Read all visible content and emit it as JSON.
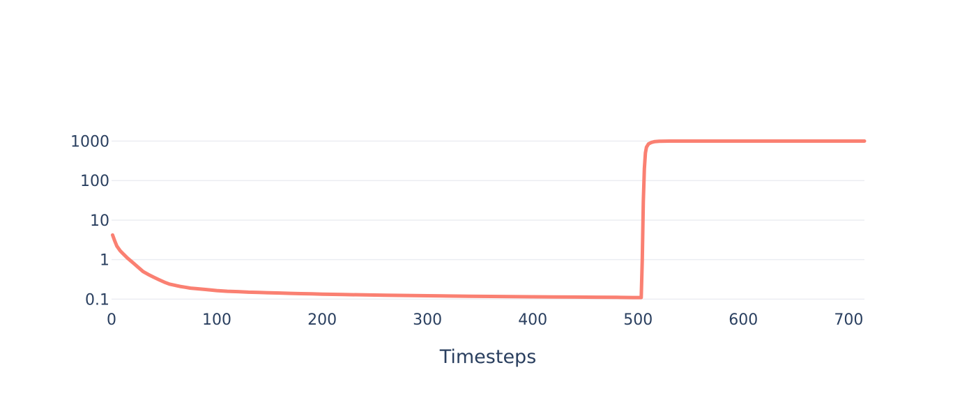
{
  "chart_data": {
    "type": "line",
    "title": "",
    "xlabel": "Timesteps",
    "ylabel": "",
    "xlim": [
      0,
      715
    ],
    "ylim": [
      0.06,
      1300
    ],
    "yscale": "log",
    "grid": {
      "x": false,
      "y": true
    },
    "legend": "none",
    "x_ticks": [
      {
        "value": 0,
        "label": "0"
      },
      {
        "value": 100,
        "label": "100"
      },
      {
        "value": 200,
        "label": "200"
      },
      {
        "value": 300,
        "label": "300"
      },
      {
        "value": 400,
        "label": "400"
      },
      {
        "value": 500,
        "label": "500"
      },
      {
        "value": 600,
        "label": "600"
      },
      {
        "value": 700,
        "label": "700"
      }
    ],
    "y_ticks": [
      {
        "value": 0.1,
        "label": "0.1"
      },
      {
        "value": 1,
        "label": "1"
      },
      {
        "value": 10,
        "label": "10"
      },
      {
        "value": 100,
        "label": "100"
      },
      {
        "value": 1000,
        "label": "1000"
      }
    ],
    "series": [
      {
        "color": "#fa8072",
        "x": [
          1,
          3,
          5,
          8,
          10,
          15,
          20,
          25,
          30,
          35,
          40,
          45,
          50,
          55,
          60,
          65,
          70,
          75,
          80,
          90,
          100,
          110,
          120,
          130,
          140,
          150,
          160,
          170,
          180,
          190,
          200,
          220,
          240,
          260,
          280,
          300,
          320,
          340,
          360,
          380,
          400,
          420,
          440,
          460,
          480,
          495,
          500,
          503,
          504,
          505,
          506,
          507,
          508,
          510,
          513,
          516,
          520,
          530,
          550,
          600,
          650,
          715
        ],
        "y": [
          4.2,
          3.0,
          2.2,
          1.7,
          1.5,
          1.1,
          0.85,
          0.65,
          0.5,
          0.42,
          0.36,
          0.31,
          0.27,
          0.24,
          0.225,
          0.21,
          0.2,
          0.19,
          0.185,
          0.175,
          0.165,
          0.158,
          0.155,
          0.15,
          0.148,
          0.145,
          0.143,
          0.14,
          0.138,
          0.136,
          0.134,
          0.131,
          0.128,
          0.126,
          0.124,
          0.122,
          0.12,
          0.118,
          0.117,
          0.116,
          0.115,
          0.114,
          0.113,
          0.112,
          0.111,
          0.11,
          0.11,
          0.11,
          1.0,
          30,
          200,
          500,
          700,
          850,
          930,
          970,
          990,
          1000,
          1000,
          1000,
          1000,
          1000
        ]
      }
    ]
  }
}
